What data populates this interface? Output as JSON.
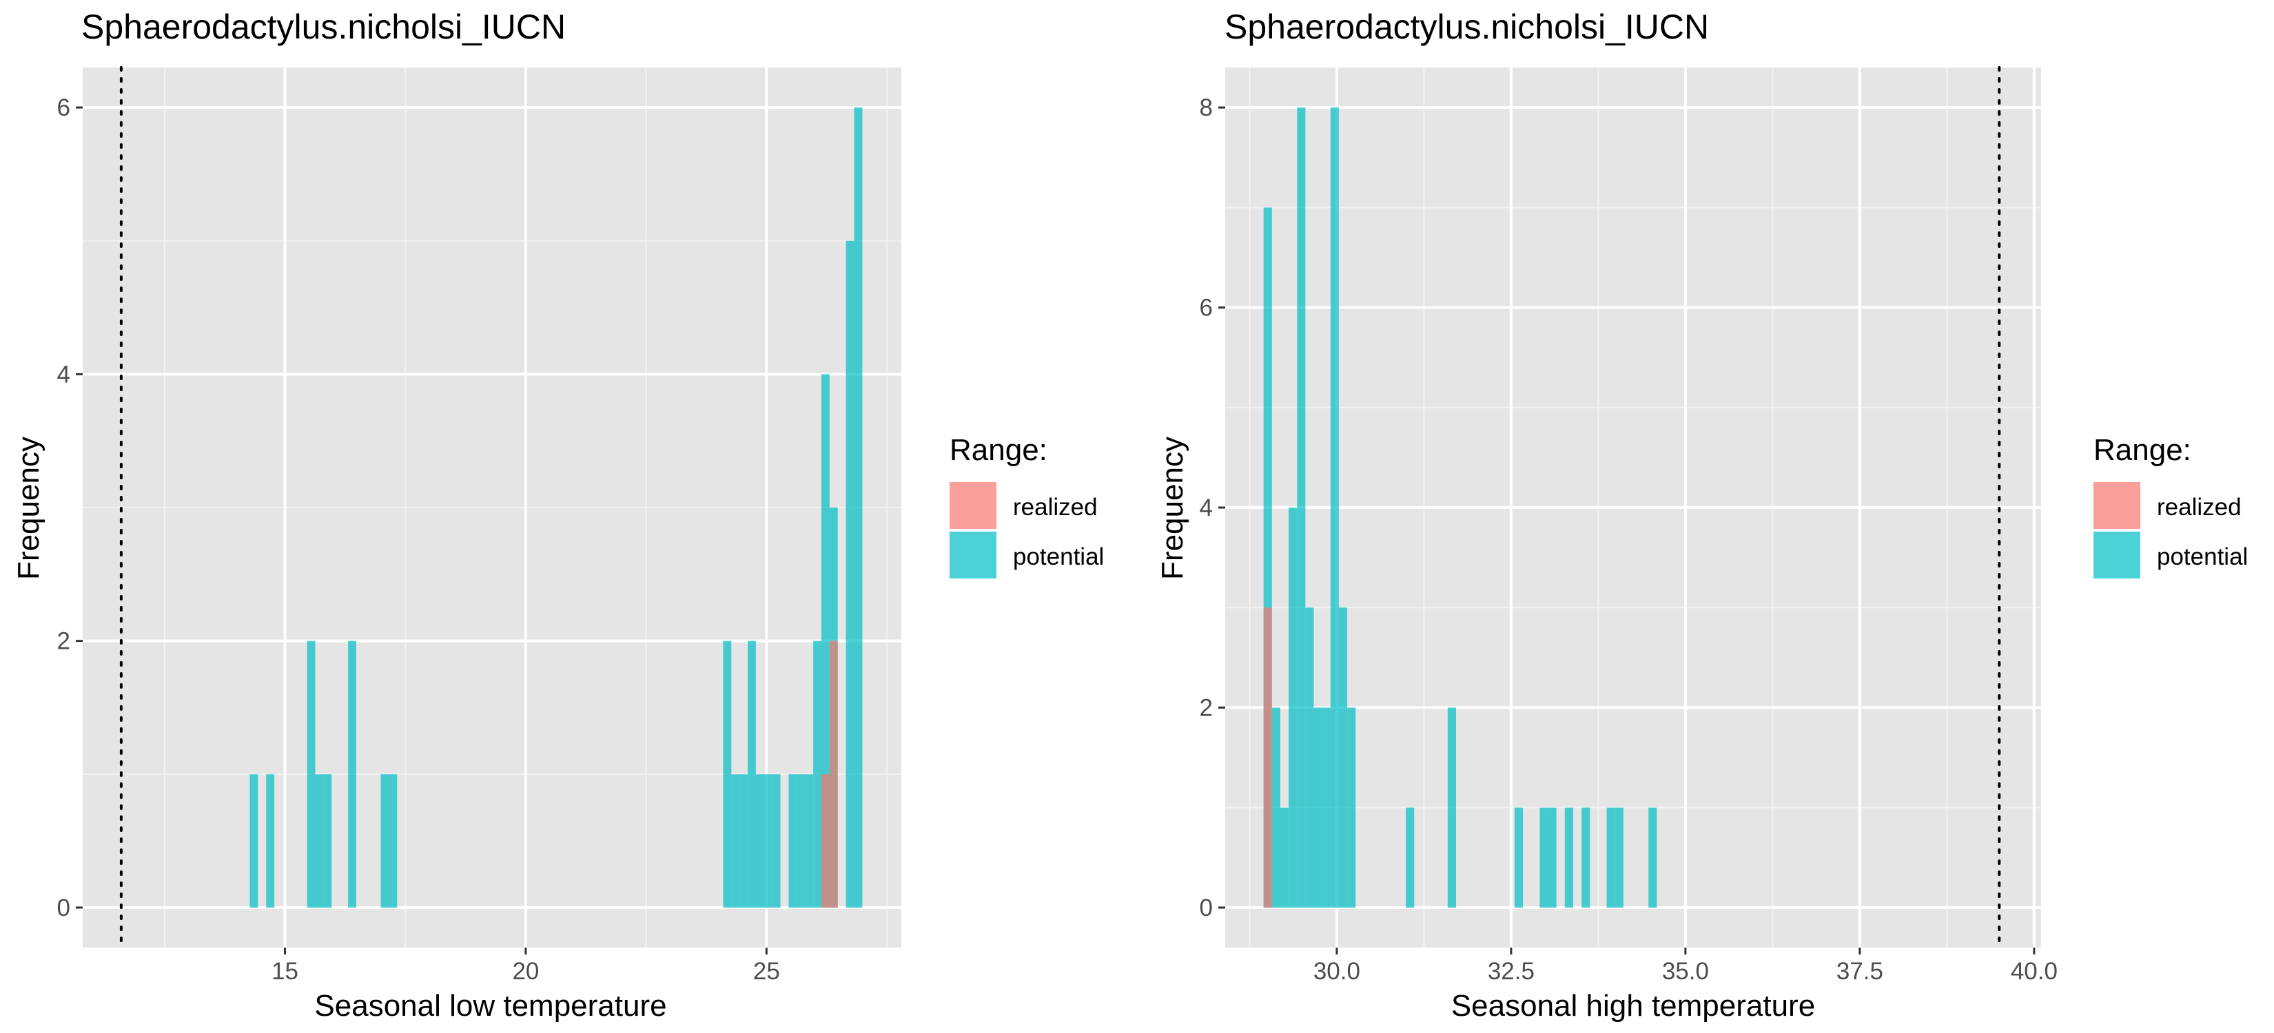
{
  "colors": {
    "panel_bg": "#E5E5E5",
    "grid_major": "#FFFFFF",
    "grid_minor": "#F2F2F2",
    "realized": "#F8766D",
    "potential": "#00BFC4",
    "axis_text": "#4D4D4D",
    "text": "#000000"
  },
  "chart_data": [
    {
      "type": "bar",
      "title": "Sphaerodactylus.nicholsi_IUCN",
      "xlabel": "Seasonal low temperature",
      "ylabel": "Frequency",
      "xlim": [
        10.8,
        27.8
      ],
      "ylim": [
        -0.3,
        6.3
      ],
      "xticks": [
        15,
        20,
        25
      ],
      "xtick_labels": [
        "15",
        "20",
        "25"
      ],
      "yticks": [
        0,
        2,
        4,
        6
      ],
      "ytick_labels": [
        "0",
        "2",
        "4",
        "6"
      ],
      "bin_width": 0.17,
      "vline": 11.6,
      "legend_title": "Range:",
      "legend_position": "right",
      "series": [
        {
          "name": "realized",
          "bins": [
            {
              "x": 26.14,
              "y": 1
            },
            {
              "x": 26.31,
              "y": 2
            }
          ]
        },
        {
          "name": "potential",
          "bins": [
            {
              "x": 14.27,
              "y": 1
            },
            {
              "x": 14.61,
              "y": 1
            },
            {
              "x": 15.46,
              "y": 2
            },
            {
              "x": 15.63,
              "y": 1
            },
            {
              "x": 15.8,
              "y": 1
            },
            {
              "x": 16.31,
              "y": 2
            },
            {
              "x": 16.99,
              "y": 1
            },
            {
              "x": 17.16,
              "y": 1
            },
            {
              "x": 24.1,
              "y": 2
            },
            {
              "x": 24.27,
              "y": 1
            },
            {
              "x": 24.44,
              "y": 1
            },
            {
              "x": 24.61,
              "y": 2
            },
            {
              "x": 24.78,
              "y": 1
            },
            {
              "x": 24.95,
              "y": 1
            },
            {
              "x": 25.12,
              "y": 1
            },
            {
              "x": 25.46,
              "y": 1
            },
            {
              "x": 25.63,
              "y": 1
            },
            {
              "x": 25.8,
              "y": 1
            },
            {
              "x": 25.97,
              "y": 2
            },
            {
              "x": 26.14,
              "y": 4
            },
            {
              "x": 26.31,
              "y": 3
            },
            {
              "x": 26.65,
              "y": 5
            },
            {
              "x": 26.82,
              "y": 6
            }
          ]
        }
      ]
    },
    {
      "type": "bar",
      "title": "Sphaerodactylus.nicholsi_IUCN",
      "xlabel": "Seasonal high temperature",
      "ylabel": "Frequency",
      "xlim": [
        28.4,
        40.1
      ],
      "ylim": [
        -0.4,
        8.4
      ],
      "xticks": [
        30,
        32.5,
        35,
        37.5,
        40
      ],
      "xtick_labels": [
        "30.0",
        "32.5",
        "35.0",
        "37.5",
        "40.0"
      ],
      "yticks": [
        0,
        2,
        4,
        6,
        8
      ],
      "ytick_labels": [
        "0",
        "2",
        "4",
        "6",
        "8"
      ],
      "bin_width": 0.12,
      "vline": 39.5,
      "legend_title": "Range:",
      "legend_position": "right",
      "series": [
        {
          "name": "realized",
          "bins": [
            {
              "x": 28.95,
              "y": 3
            }
          ]
        },
        {
          "name": "potential",
          "bins": [
            {
              "x": 28.95,
              "y": 7
            },
            {
              "x": 29.07,
              "y": 2
            },
            {
              "x": 29.19,
              "y": 1
            },
            {
              "x": 29.31,
              "y": 4
            },
            {
              "x": 29.43,
              "y": 8
            },
            {
              "x": 29.55,
              "y": 3
            },
            {
              "x": 29.67,
              "y": 2
            },
            {
              "x": 29.79,
              "y": 2
            },
            {
              "x": 29.91,
              "y": 8
            },
            {
              "x": 30.03,
              "y": 3
            },
            {
              "x": 30.15,
              "y": 2
            },
            {
              "x": 30.99,
              "y": 1
            },
            {
              "x": 31.59,
              "y": 2
            },
            {
              "x": 32.55,
              "y": 1
            },
            {
              "x": 32.91,
              "y": 1
            },
            {
              "x": 33.03,
              "y": 1
            },
            {
              "x": 33.27,
              "y": 1
            },
            {
              "x": 33.51,
              "y": 1
            },
            {
              "x": 33.87,
              "y": 1
            },
            {
              "x": 33.99,
              "y": 1
            },
            {
              "x": 34.47,
              "y": 1
            }
          ]
        }
      ]
    }
  ]
}
